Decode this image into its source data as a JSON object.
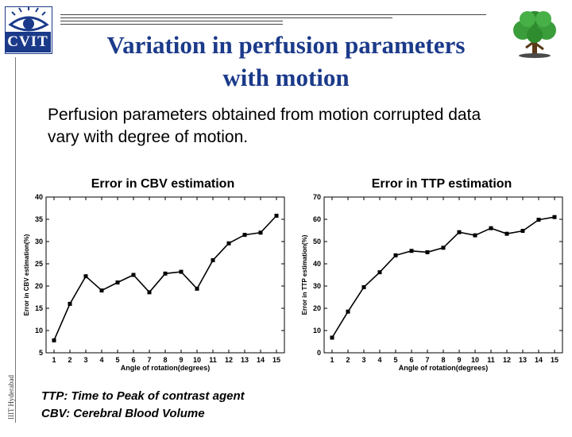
{
  "header": {
    "logo_label": "CVIT",
    "side_label": "IIIT Hyderabad",
    "title_line1": "Variation in perfusion parameters",
    "title_line2": "with motion"
  },
  "body": {
    "text_line1": "Perfusion parameters obtained from motion corrupted data",
    "text_line2": "vary with degree of motion."
  },
  "footnotes": [
    "TTP: Time to Peak of contrast agent",
    "CBV: Cerebral Blood Volume"
  ],
  "chart_data": [
    {
      "type": "line",
      "title": "Error in CBV estimation",
      "xlabel": "Angle of rotation(degrees)",
      "ylabel": "Error in CBV estimation(%)",
      "x": [
        1,
        2,
        3,
        4,
        5,
        6,
        7,
        8,
        9,
        10,
        11,
        12,
        13,
        14,
        15
      ],
      "y": [
        7.8,
        16,
        22.2,
        19,
        20.8,
        22.5,
        18.6,
        22.8,
        23.2,
        19.4,
        25.8,
        29.6,
        31.5,
        32,
        35.8
      ],
      "xlim": [
        0.5,
        15.5
      ],
      "ylim": [
        5,
        40
      ],
      "yticks": [
        5,
        10,
        15,
        20,
        25,
        30,
        35,
        40
      ],
      "xticks": [
        1,
        2,
        3,
        4,
        5,
        6,
        7,
        8,
        9,
        10,
        11,
        12,
        13,
        14,
        15
      ],
      "grid": false,
      "line_color": "#000000"
    },
    {
      "type": "line",
      "title": "Error in TTP estimation",
      "xlabel": "Angle of rotation(degrees)",
      "ylabel": "Error in TTP estimation(%)",
      "x": [
        1,
        2,
        3,
        4,
        5,
        6,
        7,
        8,
        9,
        10,
        11,
        12,
        13,
        14,
        15
      ],
      "y": [
        6.8,
        18.5,
        29.5,
        36.2,
        43.8,
        45.8,
        45.2,
        47.2,
        54.2,
        52.8,
        56,
        53.5,
        54.8,
        59.8,
        61
      ],
      "xlim": [
        0.5,
        15.5
      ],
      "ylim": [
        0,
        70
      ],
      "yticks": [
        0,
        10,
        20,
        30,
        40,
        50,
        60,
        70
      ],
      "xticks": [
        1,
        2,
        3,
        4,
        5,
        6,
        7,
        8,
        9,
        10,
        11,
        12,
        13,
        14,
        15
      ],
      "grid": false,
      "line_color": "#000000"
    }
  ]
}
